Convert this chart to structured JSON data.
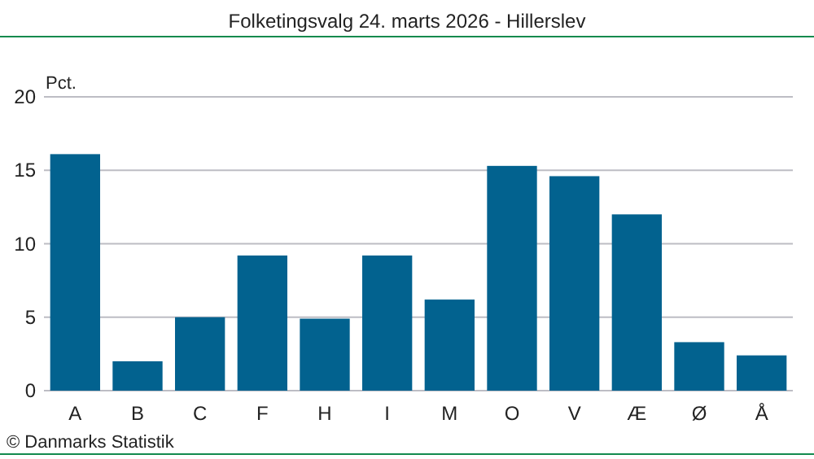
{
  "chart_data": {
    "type": "bar",
    "title": "Folketingsvalg 24. marts 2026 - Hillerslev",
    "ylabel": "Pct.",
    "categories": [
      "A",
      "B",
      "C",
      "F",
      "H",
      "I",
      "M",
      "O",
      "V",
      "Æ",
      "Ø",
      "Å"
    ],
    "values": [
      16.1,
      2.0,
      5.0,
      9.2,
      4.9,
      9.2,
      6.2,
      15.3,
      14.6,
      12.0,
      3.3,
      2.4
    ],
    "color": "#02628f",
    "ylim": [
      0,
      20
    ],
    "yticks": [
      0,
      5,
      10,
      15,
      20
    ],
    "grid": "y",
    "annotations": [
      "© Danmarks Statistik"
    ]
  }
}
